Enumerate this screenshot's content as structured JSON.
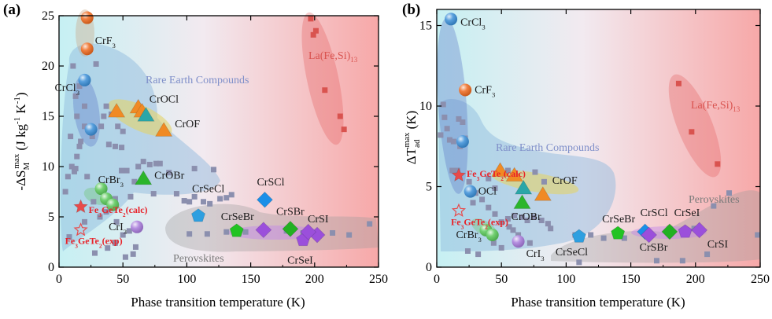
{
  "chart_data": [
    {
      "panel": "(a)",
      "type": "scatter",
      "xlabel": "Phase transition temperature (K)",
      "ylabel": "-ΔS_M^max (J kg^-1 K^-1)",
      "xlim": [
        0,
        250
      ],
      "ylim": [
        0,
        25
      ],
      "xticks": [
        0,
        50,
        100,
        150,
        200,
        250
      ],
      "yticks": [
        0,
        5,
        10,
        15,
        20,
        25
      ],
      "grid": false,
      "regions": [
        {
          "label": "Rare Earth Compounds",
          "color": "#7f8fc9"
        },
        {
          "label": "La(Fe,Si)13",
          "color": "#d9534f"
        },
        {
          "label": "Perovskites",
          "color": "#777777"
        }
      ],
      "background_points": [
        [
          11,
          20
        ],
        [
          13,
          17
        ],
        [
          14,
          15
        ],
        [
          16,
          18
        ],
        [
          20,
          16
        ],
        [
          9,
          13
        ],
        [
          14,
          11
        ],
        [
          7,
          9
        ],
        [
          12,
          9.5
        ],
        [
          17,
          12.5
        ],
        [
          26,
          13
        ],
        [
          29,
          20.2
        ],
        [
          33,
          14
        ],
        [
          35,
          15
        ],
        [
          37,
          16
        ],
        [
          39,
          12.2
        ],
        [
          41,
          15.2
        ],
        [
          44,
          12
        ],
        [
          46,
          14
        ],
        [
          49,
          11.9
        ],
        [
          50,
          13.5
        ],
        [
          53,
          9.6
        ],
        [
          59,
          8.5
        ],
        [
          56,
          7
        ],
        [
          62,
          10
        ],
        [
          66,
          10.5
        ],
        [
          71,
          10.2
        ],
        [
          76,
          10.3
        ],
        [
          79,
          10.3
        ],
        [
          86,
          9.4
        ],
        [
          92,
          7.3
        ],
        [
          98,
          6.6
        ],
        [
          102,
          6.5
        ],
        [
          106,
          7
        ],
        [
          113,
          6.5
        ],
        [
          118,
          6.3
        ],
        [
          126,
          6.8
        ],
        [
          131,
          6.9
        ],
        [
          135,
          7.2
        ],
        [
          22,
          9
        ],
        [
          27,
          6.5
        ],
        [
          32,
          5
        ],
        [
          37,
          5.5
        ],
        [
          45,
          4.5
        ],
        [
          50,
          3.2
        ],
        [
          55,
          3.6
        ],
        [
          60,
          2
        ],
        [
          28,
          1.4
        ],
        [
          38,
          1.9
        ],
        [
          44,
          2.4
        ],
        [
          52,
          1
        ],
        [
          58,
          1.3
        ],
        [
          13,
          9.8
        ],
        [
          5,
          7.5
        ],
        [
          10,
          10
        ],
        [
          16,
          12
        ],
        [
          20,
          14
        ],
        [
          44,
          6.8
        ],
        [
          49,
          9.6
        ],
        [
          74,
          7.3
        ],
        [
          106,
          9.8
        ],
        [
          121,
          9.7
        ],
        [
          8,
          3
        ],
        [
          20,
          4.5
        ],
        [
          102,
          3.3
        ],
        [
          116,
          3.3
        ],
        [
          131,
          3.5
        ],
        [
          146,
          3.5
        ],
        [
          161,
          3.6
        ],
        [
          178,
          3.6
        ],
        [
          191,
          3.4
        ],
        [
          214,
          3.4
        ],
        [
          227,
          3.2
        ],
        [
          243,
          4.3
        ],
        [
          197,
          24.7
        ],
        [
          199,
          23.1
        ],
        [
          201,
          23.5
        ],
        [
          208,
          17.6
        ],
        [
          220,
          15.0
        ],
        [
          223,
          13.7
        ]
      ],
      "materials": [
        {
          "name": "CrF3",
          "x": 22,
          "y": 21.7,
          "shape": "sphere",
          "color": "#ee6a1f"
        },
        {
          "name": "",
          "x": 22,
          "y": 24.8,
          "shape": "sphere",
          "color": "#ee6a1f"
        },
        {
          "name": "CrCl3",
          "x": 20,
          "y": 18.6,
          "shape": "sphere",
          "color": "#3b8fd8"
        },
        {
          "name": "",
          "x": 25,
          "y": 13.7,
          "shape": "sphere",
          "color": "#3b8fd8"
        },
        {
          "name": "CrOCl",
          "x": 62,
          "y": 15.9,
          "shape": "triangle",
          "color": "#f08a24"
        },
        {
          "name": "",
          "x": 65,
          "y": 15.5,
          "shape": "triangle",
          "color": "#f08a24"
        },
        {
          "name": "",
          "x": 68,
          "y": 15.1,
          "shape": "triangle",
          "color": "#2aa6a8"
        },
        {
          "name": "",
          "x": 45,
          "y": 15.5,
          "shape": "triangle",
          "color": "#f08a24"
        },
        {
          "name": "CrOF",
          "x": 82,
          "y": 13.6,
          "shape": "triangle",
          "color": "#f08a24"
        },
        {
          "name": "CrOBr",
          "x": 66,
          "y": 8.8,
          "shape": "triangle",
          "color": "#2bb52b"
        },
        {
          "name": "CrBr3",
          "x": 33,
          "y": 7.8,
          "shape": "sphere",
          "color": "#5ac85a"
        },
        {
          "name": "",
          "x": 37,
          "y": 6.8,
          "shape": "sphere",
          "color": "#5ac85a"
        },
        {
          "name": "",
          "x": 42,
          "y": 6.2,
          "shape": "sphere",
          "color": "#5ac85a"
        },
        {
          "name": "CrI3",
          "x": 61,
          "y": 4.0,
          "shape": "sphere",
          "color": "#a87bdb"
        },
        {
          "name": "Fe3GeTe2(calc)",
          "x": 17,
          "y": 6.0,
          "shape": "star-filled",
          "color": "#e84a4a"
        },
        {
          "name": "Fe3GeTe2(exp)",
          "x": 17,
          "y": 3.7,
          "shape": "star-open",
          "color": "#e84a4a"
        },
        {
          "name": "CrSeCl",
          "x": 109,
          "y": 5.1,
          "shape": "pentagon",
          "color": "#2e9fe0"
        },
        {
          "name": "CrSeBr",
          "x": 139,
          "y": 3.6,
          "shape": "pentagon",
          "color": "#22c322"
        },
        {
          "name": "CrSCl",
          "x": 161,
          "y": 6.7,
          "shape": "diamond",
          "color": "#1a8fe8"
        },
        {
          "name": "CrSBr",
          "x": 181,
          "y": 3.8,
          "shape": "diamond",
          "color": "#22b022"
        },
        {
          "name": "CrSI",
          "x": 202,
          "y": 3.2,
          "shape": "diamond",
          "color": "#9b4fdb"
        },
        {
          "name": "CrSeI",
          "x": 191,
          "y": 2.7,
          "shape": "pentagon",
          "color": "#9b4fdb"
        },
        {
          "name": "",
          "x": 160,
          "y": 3.7,
          "shape": "diamond",
          "color": "#9b4fdb"
        },
        {
          "name": "",
          "x": 195,
          "y": 3.5,
          "shape": "diamond",
          "color": "#9b4fdb"
        }
      ]
    },
    {
      "panel": "(b)",
      "type": "scatter",
      "xlabel": "Phase transition temperature (K)",
      "ylabel": "ΔT_ad^max (K)",
      "xlim": [
        0,
        250
      ],
      "ylim": [
        0,
        16
      ],
      "xticks": [
        0,
        50,
        100,
        150,
        200,
        250
      ],
      "yticks": [
        0,
        5,
        10,
        15
      ],
      "grid": false,
      "regions": [
        {
          "label": "Rare Earth Compounds",
          "color": "#7f8fc9"
        },
        {
          "label": "La(Fe,Si)13",
          "color": "#d9534f"
        },
        {
          "label": "Perovskites",
          "color": "#777777"
        }
      ],
      "background_points": [
        [
          5,
          10.1
        ],
        [
          6,
          9.3
        ],
        [
          8,
          8.6
        ],
        [
          10,
          7.9
        ],
        [
          13,
          7.8
        ],
        [
          17,
          9.2
        ],
        [
          20,
          9.0
        ],
        [
          3,
          8.2
        ],
        [
          12,
          6.0
        ],
        [
          16,
          6.0
        ],
        [
          18,
          7.5
        ],
        [
          22,
          8.0
        ],
        [
          25,
          5.3
        ],
        [
          28,
          4.0
        ],
        [
          30,
          4.6
        ],
        [
          35,
          4.2
        ],
        [
          40,
          3.7
        ],
        [
          45,
          3.3
        ],
        [
          50,
          2.8
        ],
        [
          55,
          3.0
        ],
        [
          60,
          3.2
        ],
        [
          66,
          3.1
        ],
        [
          70,
          2.9
        ],
        [
          75,
          3.1
        ],
        [
          81,
          2.9
        ],
        [
          86,
          2.7
        ],
        [
          88,
          2.4
        ],
        [
          40,
          5.5
        ],
        [
          45,
          4.9
        ],
        [
          55,
          6.0
        ],
        [
          76,
          5.9
        ],
        [
          83,
          5.3
        ],
        [
          24,
          1.0
        ],
        [
          32,
          0.8
        ],
        [
          44,
          1.5
        ],
        [
          50,
          1.2
        ],
        [
          56,
          2.5
        ],
        [
          59,
          2.3
        ],
        [
          63,
          2.0
        ],
        [
          72,
          1.5
        ],
        [
          107,
          2.0
        ],
        [
          119,
          2.0
        ],
        [
          129,
          1.8
        ],
        [
          145,
          1.8
        ],
        [
          163,
          2.1
        ],
        [
          180,
          2.4
        ],
        [
          199,
          2.4
        ],
        [
          214,
          3.8
        ],
        [
          226,
          4.6
        ],
        [
          248,
          2.0
        ],
        [
          110,
          0.3
        ],
        [
          170,
          0.4
        ],
        [
          190,
          0.4
        ],
        [
          209,
          0.8
        ],
        [
          187,
          11.4
        ],
        [
          197,
          8.4
        ],
        [
          217,
          6.4
        ]
      ],
      "materials": [
        {
          "name": "CrCl3",
          "x": 11,
          "y": 15.4,
          "shape": "sphere",
          "color": "#3b8fd8"
        },
        {
          "name": "CrF3",
          "x": 22,
          "y": 11.0,
          "shape": "sphere",
          "color": "#ee6a1f"
        },
        {
          "name": "",
          "x": 20,
          "y": 7.8,
          "shape": "sphere",
          "color": "#3b8fd8"
        },
        {
          "name": "OCl",
          "x": 26,
          "y": 4.7,
          "shape": "sphere",
          "color": "#3b8fd8"
        },
        {
          "name": "Fe3GeTe2(calc)",
          "x": 17,
          "y": 5.7,
          "shape": "star-filled",
          "color": "#e84a4a"
        },
        {
          "name": "Fe3GeTe2(exp)",
          "x": 17,
          "y": 3.5,
          "shape": "star-open",
          "color": "#e84a4a"
        },
        {
          "name": "",
          "x": 49,
          "y": 6.0,
          "shape": "triangle",
          "color": "#f08a24"
        },
        {
          "name": "",
          "x": 60,
          "y": 5.7,
          "shape": "triangle",
          "color": "#f08a24"
        },
        {
          "name": "",
          "x": 67,
          "y": 4.9,
          "shape": "triangle",
          "color": "#2aa6a8"
        },
        {
          "name": "CrOF",
          "x": 82,
          "y": 4.5,
          "shape": "triangle",
          "color": "#f08a24"
        },
        {
          "name": "CrOBr",
          "x": 66,
          "y": 4.0,
          "shape": "triangle",
          "color": "#2bb52b"
        },
        {
          "name": "CrBr3",
          "x": 38,
          "y": 2.3,
          "shape": "sphere",
          "color": "#5ac85a"
        },
        {
          "name": "",
          "x": 43,
          "y": 2.0,
          "shape": "sphere",
          "color": "#5ac85a"
        },
        {
          "name": "CrI3",
          "x": 63,
          "y": 1.6,
          "shape": "sphere",
          "color": "#a87bdb"
        },
        {
          "name": "CrSeCl",
          "x": 110,
          "y": 1.9,
          "shape": "pentagon",
          "color": "#2e9fe0"
        },
        {
          "name": "CrSeBr",
          "x": 140,
          "y": 2.1,
          "shape": "pentagon",
          "color": "#22c322"
        },
        {
          "name": "CrSCl",
          "x": 161,
          "y": 2.2,
          "shape": "diamond",
          "color": "#1a8fe8"
        },
        {
          "name": "CrSBr",
          "x": 164,
          "y": 2.0,
          "shape": "diamond",
          "color": "#9b4fdb"
        },
        {
          "name": "",
          "x": 180,
          "y": 2.2,
          "shape": "diamond",
          "color": "#22b022"
        },
        {
          "name": "CrSeI",
          "x": 192,
          "y": 2.2,
          "shape": "pentagon",
          "color": "#9b4fdb"
        },
        {
          "name": "CrSI",
          "x": 203,
          "y": 2.3,
          "shape": "diamond",
          "color": "#9b4fdb"
        }
      ]
    }
  ]
}
